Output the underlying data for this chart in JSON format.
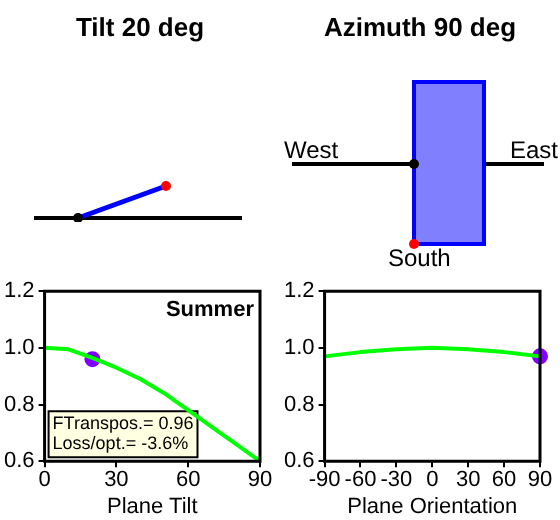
{
  "chart_data": [
    {
      "type": "other",
      "title": "Tilt 20 deg"
    },
    {
      "type": "other",
      "title": "Azimuth 90 deg",
      "annotations": [
        "West",
        "East",
        "South"
      ]
    },
    {
      "type": "line",
      "xlabel": "Plane Tilt",
      "xlim": [
        0,
        90
      ],
      "xticks": [
        0,
        30,
        60,
        90
      ],
      "ylim": [
        0.6,
        1.2
      ],
      "yticks": [
        0.6,
        0.8,
        {
          "value": 1,
          "label": "1.0"
        },
        1.2
      ],
      "grid": false,
      "legend": false,
      "annotations": [
        "Summer",
        "FTranspos.= 0.96",
        "Loss/opt.= -3.6%"
      ],
      "series": [
        {
          "type": "line",
          "color": "#00ff00",
          "x": [
            0,
            10,
            20,
            30,
            40,
            50,
            60,
            70,
            80,
            90
          ],
          "values": [
            1.0,
            0.995,
            0.965,
            0.93,
            0.89,
            0.84,
            0.78,
            0.72,
            0.66,
            0.6
          ]
        },
        {
          "type": "scatter",
          "marker": "circle",
          "color": "#8000ff",
          "x": [
            20
          ],
          "values": [
            0.96
          ]
        }
      ]
    },
    {
      "type": "line",
      "xlabel": "Plane Orientation",
      "xlim": [
        -90,
        90
      ],
      "xticks": [
        -90,
        -60,
        -30,
        0,
        30,
        60,
        90
      ],
      "ylim": [
        0.6,
        1.2
      ],
      "yticks": [
        0.6,
        0.8,
        {
          "value": 1,
          "label": "1.0"
        },
        1.2
      ],
      "grid": false,
      "legend": false,
      "series": [
        {
          "type": "line",
          "color": "#00ff00",
          "x": [
            -90,
            -60,
            -30,
            0,
            30,
            60,
            90
          ],
          "values": [
            0.97,
            0.985,
            0.995,
            1.0,
            0.995,
            0.985,
            0.97
          ]
        },
        {
          "type": "scatter",
          "marker": "circle",
          "color": "#8000ff",
          "x": [
            90
          ],
          "values": [
            0.97
          ]
        }
      ]
    }
  ]
}
